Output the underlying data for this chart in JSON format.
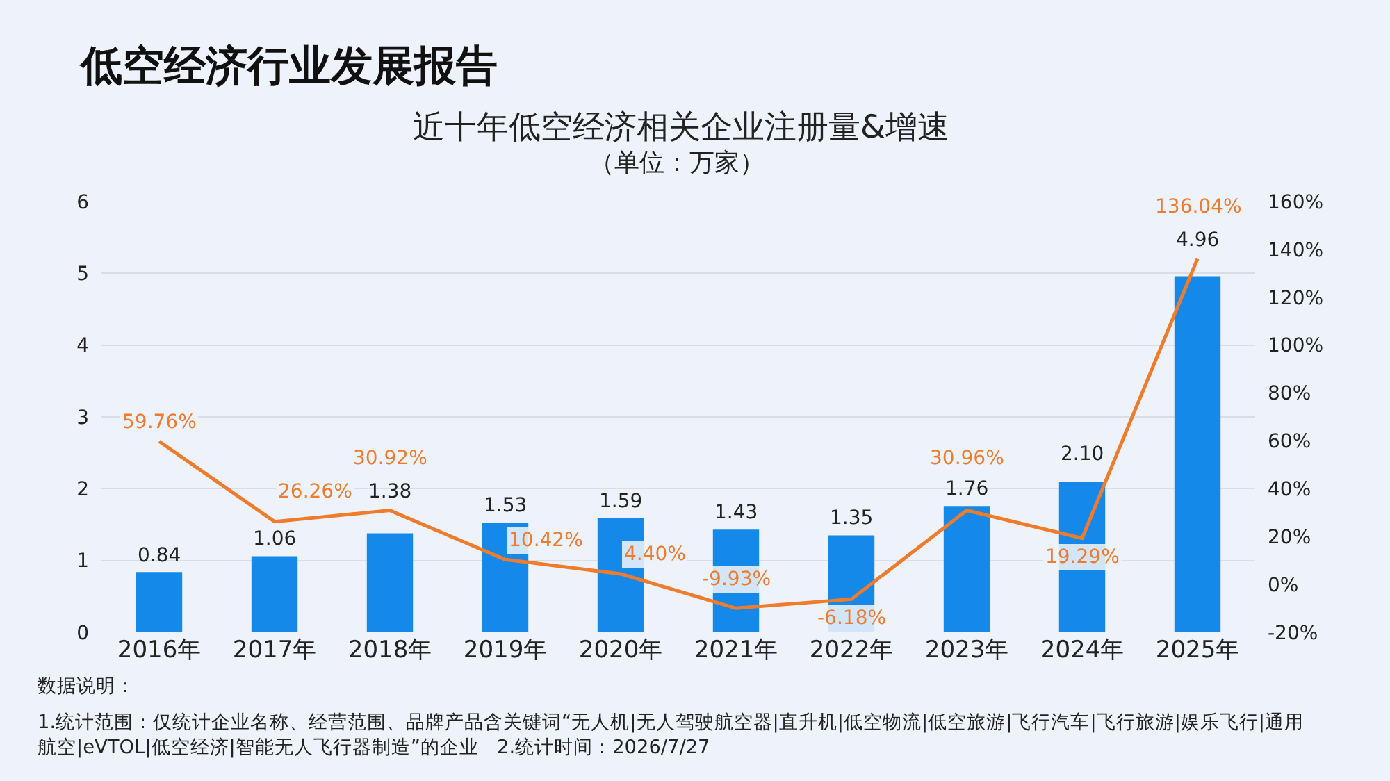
{
  "chart_data": {
    "type": "bar",
    "title": "低空经济行业发展报告",
    "subtitle": "近十年低空经济相关企业注册量&增速",
    "categories": [
      "2016年",
      "2017年",
      "2018年",
      "2019年",
      "2020年",
      "2021年",
      "2022年",
      "2023年",
      "2024年",
      "2025年"
    ],
    "series": [
      {
        "color": "#1589ea",
        "values": [
          0.84,
          1.06,
          1.38,
          1.53,
          1.59,
          1.43,
          1.35,
          1.76,
          2.1,
          4.96
        ],
        "value_labels": [
          "0.84",
          "1.06",
          "1.38",
          "1.53",
          "1.59",
          "1.43",
          "1.35",
          "1.76",
          "2.10",
          "4.96"
        ]
      },
      {
        "type": "line",
        "axis": "y2",
        "color": "#f07b2b",
        "values": [
          59.76,
          26.26,
          30.92,
          10.42,
          4.4,
          -9.93,
          -6.18,
          30.96,
          19.29,
          136.04
        ],
        "value_labels": [
          "59.76%",
          "26.26%",
          "30.92%",
          "10.42%",
          "4.40%",
          "-9.93%",
          "-6.18%",
          "30.96%",
          "19.29%",
          "136.04%"
        ]
      }
    ],
    "ylim": [
      0,
      6
    ],
    "yticks": [
      0,
      1,
      2,
      3,
      4,
      5,
      6
    ],
    "y2lim": [
      -20,
      160
    ],
    "y2ticks": [
      {
        "value": -20,
        "label": "-20%"
      },
      {
        "value": 0,
        "label": "0%"
      },
      {
        "value": 20,
        "label": "20%"
      },
      {
        "value": 40,
        "label": "40%"
      },
      {
        "value": 60,
        "label": "60%"
      },
      {
        "value": 80,
        "label": "80%"
      },
      {
        "value": 100,
        "label": "100%"
      },
      {
        "value": 120,
        "label": "120%"
      },
      {
        "value": 140,
        "label": "140%"
      },
      {
        "value": 160,
        "label": "160%"
      }
    ],
    "grid": "y",
    "annotations": [
      "（单位：万家）",
      "数据说明：",
      "1.统计范围：仅统计企业名称、经营范围、品牌产品含关键词“无人机|无人驾驶航空器|直升机|低空物流|低空旅游|飞行汽车|飞行旅游|娱乐飞行|通用航空|eVTOL|低空经济|智能无人飞行器制造”的企业   2.统计时间：2026/7/27"
    ]
  }
}
